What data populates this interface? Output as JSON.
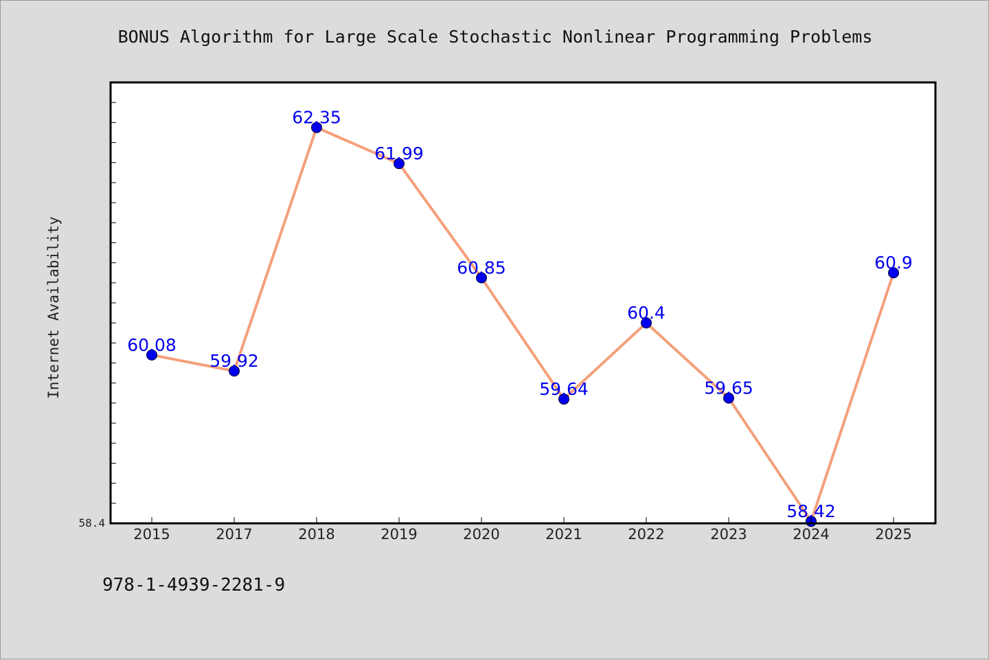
{
  "chart_data": {
    "type": "line",
    "title": "BONUS Algorithm for Large Scale Stochastic Nonlinear Programming Problems",
    "xlabel": "",
    "ylabel": "Internet Availability",
    "categories": [
      "2015",
      "2017",
      "2018",
      "2019",
      "2020",
      "2021",
      "2022",
      "2023",
      "2024",
      "2025"
    ],
    "series": [
      {
        "values": [
          60.08,
          59.92,
          62.35,
          61.99,
          60.85,
          59.64,
          60.4,
          59.65,
          58.42,
          60.9
        ],
        "labels": [
          "60.08",
          "59.92",
          "62.35",
          "61.99",
          "60.85",
          "59.64",
          "60.4",
          "59.65",
          "58.42",
          "60.9"
        ]
      }
    ],
    "ylim": [
      58.4,
      62.8
    ],
    "yticks_labeled": [
      "58.4"
    ],
    "grid": false,
    "legend": "none",
    "colors": {
      "line": "#f4a07a",
      "marker": "#0000ee",
      "data_label": "#0000ee",
      "plot_background": "#ffffff",
      "figure_background": "#dcdcdc"
    }
  },
  "footer": {
    "isbn": "978-1-4939-2281-9"
  }
}
